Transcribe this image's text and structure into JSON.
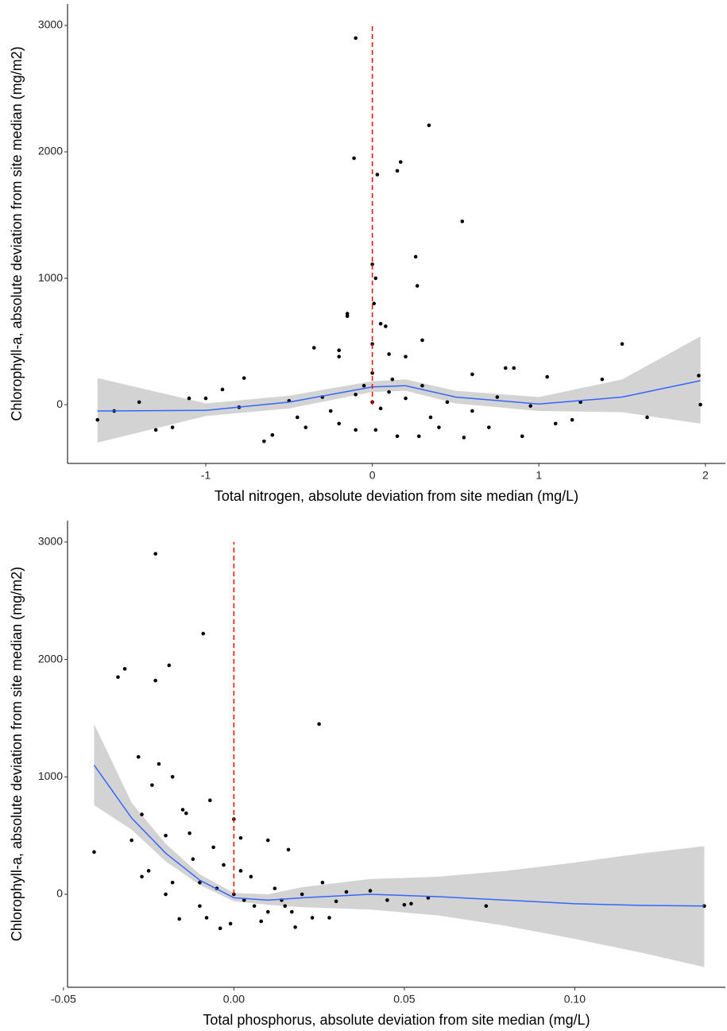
{
  "chart_data": [
    {
      "type": "scatter",
      "x_label": "Total nitrogen, absolute deviation from site median (mg/L)",
      "y_label": "Chlorophyll-a, absolute deviation from site median (mg/m2)",
      "xlim": [
        -1.83,
        2.12
      ],
      "ylim": [
        -465,
        3170
      ],
      "xticks": [
        -1,
        0,
        1,
        2
      ],
      "yticks": [
        0,
        1000,
        2000,
        3000
      ],
      "points": {
        "color": "#000000",
        "x": [
          -0.1,
          0.34,
          -0.11,
          0.17,
          0.03,
          0.15,
          0.54,
          0.26,
          0.27,
          0.0,
          0.02,
          0.01,
          -0.15,
          -0.15,
          0.05,
          0.08,
          0.3,
          1.5,
          -0.35,
          -0.2,
          -0.2,
          0.0,
          0.1,
          0.2,
          0.6,
          0.8,
          0.85,
          1.05,
          1.38,
          1.96,
          1.97,
          1.65,
          -0.77,
          -0.9,
          -1.65,
          -1.55,
          -1.3,
          -1.2,
          -1.1,
          -1.0,
          -0.65,
          -0.6,
          -0.4,
          -0.2,
          -0.1,
          0.02,
          0.15,
          0.28,
          0.4,
          0.55,
          0.7,
          0.9,
          1.1,
          1.2,
          -0.8,
          -0.5,
          -0.3,
          -0.1,
          0.0,
          0.05,
          0.1,
          0.2,
          0.3,
          0.45,
          0.6,
          0.75,
          0.95,
          1.25,
          -1.4,
          -0.05,
          0.0,
          0.12,
          -0.25,
          0.35,
          -0.45
        ],
        "y": [
          2900,
          2210,
          1950,
          1920,
          1820,
          1850,
          1450,
          1170,
          940,
          1110,
          1000,
          800,
          720,
          700,
          640,
          620,
          510,
          480,
          450,
          430,
          380,
          480,
          400,
          380,
          240,
          290,
          290,
          220,
          200,
          230,
          0,
          -100,
          210,
          120,
          -120,
          -50,
          -200,
          -180,
          50,
          50,
          -290,
          -240,
          -180,
          -150,
          -200,
          -200,
          -250,
          -250,
          -180,
          -260,
          -180,
          -250,
          -150,
          -120,
          -20,
          30,
          60,
          80,
          20,
          -30,
          100,
          50,
          150,
          20,
          -50,
          60,
          -10,
          20,
          20,
          150,
          250,
          200,
          -50,
          -100,
          -100
        ]
      },
      "smooth": {
        "color": "#3366ff",
        "band_color": "#d3d3d3",
        "x": [
          -1.65,
          -1.0,
          -0.5,
          0.0,
          0.2,
          0.5,
          1.0,
          1.5,
          1.97
        ],
        "y": [
          -50,
          -45,
          20,
          140,
          150,
          60,
          5,
          60,
          190
        ],
        "lower": [
          -300,
          -90,
          -30,
          100,
          110,
          10,
          -50,
          -60,
          -150
        ],
        "upper": [
          210,
          10,
          70,
          185,
          200,
          110,
          60,
          200,
          540
        ]
      },
      "vline": {
        "x": 0,
        "ymin": 0,
        "ymax": 3000,
        "color": "#ff0000"
      }
    },
    {
      "type": "scatter",
      "x_label": "Total phosphorus, absolute deviation from site median (mg/L)",
      "y_label": "Chlorophyll-a, absolute deviation from site median (mg/m2)",
      "xlim": [
        -0.0488,
        0.1442
      ],
      "ylim": [
        -792,
        3182
      ],
      "xticks": [
        -0.05,
        {
          "value": 0,
          "label": "0.00"
        },
        0.05,
        {
          "value": 0.1,
          "label": "0.10"
        }
      ],
      "yticks": [
        0,
        1000,
        2000,
        3000
      ],
      "points": {
        "color": "#000000",
        "x": [
          -0.023,
          -0.009,
          -0.032,
          -0.034,
          -0.019,
          -0.023,
          0.025,
          -0.028,
          -0.022,
          -0.018,
          -0.041,
          -0.027,
          -0.024,
          -0.015,
          -0.014,
          -0.013,
          -0.007,
          -0.03,
          -0.025,
          -0.02,
          -0.016,
          -0.004,
          0.0,
          0.002,
          0.01,
          0.016,
          0.026,
          0.04,
          0.05,
          0.052,
          0.057,
          0.074,
          0.138,
          0.018,
          0.023,
          0.028,
          -0.01,
          -0.005,
          0.0,
          0.003,
          0.006,
          0.01,
          0.015,
          -0.008,
          -0.012,
          -0.003,
          0.005,
          0.012,
          -0.018,
          -0.027,
          0.02,
          0.045,
          0.033,
          -0.001,
          0.008,
          -0.01,
          0.014,
          0.002,
          -0.006,
          -0.02,
          0.03,
          0.017
        ],
        "y": [
          2900,
          2220,
          1920,
          1850,
          1950,
          1820,
          1450,
          1170,
          1110,
          1000,
          360,
          680,
          930,
          720,
          690,
          520,
          800,
          460,
          200,
          0,
          -210,
          -290,
          640,
          480,
          460,
          380,
          100,
          30,
          -90,
          -80,
          -30,
          -100,
          -100,
          -280,
          -200,
          -200,
          100,
          50,
          0,
          -50,
          -100,
          -150,
          -100,
          -200,
          300,
          250,
          150,
          50,
          100,
          150,
          0,
          -50,
          20,
          -250,
          -230,
          -100,
          -50,
          200,
          400,
          500,
          -60,
          -150
        ]
      },
      "smooth": {
        "color": "#3366ff",
        "band_color": "#d3d3d3",
        "x": [
          -0.041,
          -0.03,
          -0.02,
          -0.01,
          0.0,
          0.01,
          0.02,
          0.04,
          0.06,
          0.08,
          0.1,
          0.12,
          0.138
        ],
        "y": [
          1100,
          650,
          350,
          120,
          -30,
          -50,
          -30,
          0,
          -20,
          -50,
          -80,
          -95,
          -100
        ],
        "lower": [
          760,
          550,
          280,
          80,
          -60,
          -90,
          -110,
          -130,
          -180,
          -270,
          -380,
          -500,
          -620
        ],
        "upper": [
          1450,
          780,
          430,
          170,
          10,
          0,
          60,
          130,
          150,
          200,
          270,
          350,
          410
        ]
      },
      "vline": {
        "x": 0,
        "ymin": 0,
        "ymax": 3000,
        "color": "#ff0000"
      }
    }
  ]
}
